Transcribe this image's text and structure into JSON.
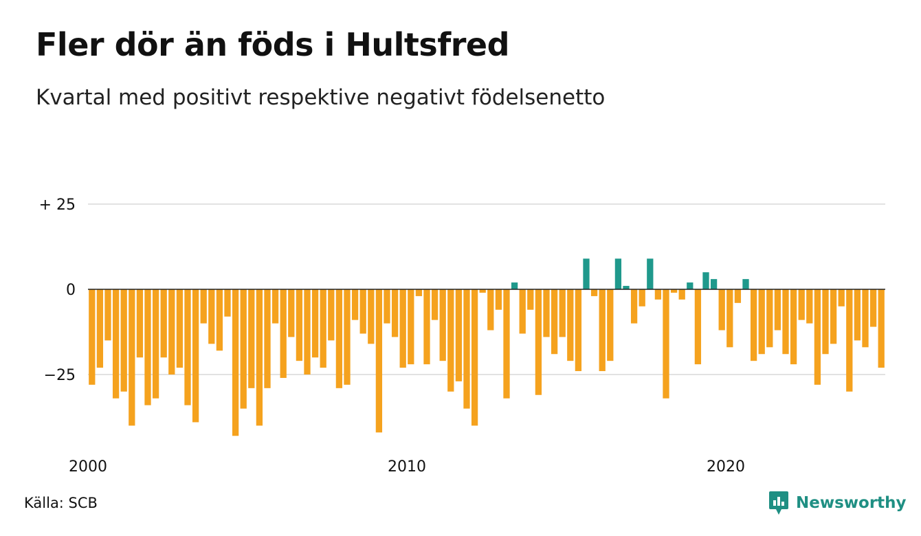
{
  "title": "Fler dör än föds i Hultsfred",
  "subtitle": "Kvartal med positivt respektive negativt födelsenetto",
  "source": "Källa: SCB",
  "brand": {
    "name": "Newsworthy",
    "icon": "newsworthy-logo-icon",
    "color": "#1f8f83"
  },
  "chart_data": {
    "type": "bar",
    "start_year": 2000,
    "periods_per_year": 4,
    "y_ticks": [
      {
        "value": 25,
        "label": "+ 25"
      },
      {
        "value": 0,
        "label": "0"
      },
      {
        "value": -25,
        "label": "−25"
      }
    ],
    "x_ticks": [
      {
        "value": 2000,
        "label": "2000"
      },
      {
        "value": 2010,
        "label": "2010"
      },
      {
        "value": 2020,
        "label": "2020"
      }
    ],
    "ylim": [
      -45,
      25
    ],
    "grid": true,
    "colors": {
      "positive": "#1f998c",
      "negative": "#f5a21e",
      "grid": "#e2e2e2",
      "zero_line": "#222222"
    },
    "values": [
      -28,
      -23,
      -15,
      -32,
      -30,
      -40,
      -20,
      -34,
      -32,
      -20,
      -25,
      -23,
      -34,
      -39,
      -10,
      -16,
      -18,
      -8,
      -43,
      -35,
      -29,
      -40,
      -29,
      -10,
      -26,
      -14,
      -21,
      -25,
      -20,
      -23,
      -15,
      -29,
      -28,
      -9,
      -13,
      -16,
      -42,
      -10,
      -14,
      -23,
      -22,
      -2,
      -22,
      -9,
      -21,
      -30,
      -27,
      -35,
      -40,
      -1,
      -12,
      -6,
      -32,
      2,
      -13,
      -6,
      -31,
      -14,
      -19,
      -14,
      -21,
      -24,
      9,
      -2,
      -24,
      -21,
      9,
      1,
      -10,
      -5,
      9,
      -3,
      -32,
      -1,
      -3,
      2,
      -22,
      5,
      3,
      -12,
      -17,
      -4,
      3,
      -21,
      -19,
      -17,
      -12,
      -19,
      -22,
      -9,
      -10,
      -28,
      -19,
      -16,
      -5,
      -30,
      -15,
      -17,
      -11,
      -23
    ]
  }
}
